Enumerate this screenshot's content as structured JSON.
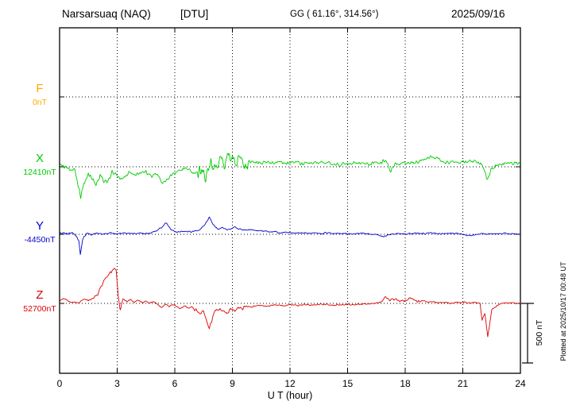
{
  "header": {
    "station": "Narsarsuaq (NAQ)",
    "institute": "[DTU]",
    "gg": "GG ( 61.16°, 314.56°)",
    "date": "2025/09/16"
  },
  "axis": {
    "xlabel": "U T (hour)"
  },
  "sidebar": {
    "plotted": "Plotted at 2025/10/17 00:48 UT",
    "scale_label": "500 nT"
  },
  "chart_data": {
    "type": "line",
    "title": "Narsarsuaq (NAQ) [DTU] magnetogram",
    "date": "2025/09/16",
    "xlabel": "U T (hour)",
    "x_range": [
      0,
      24
    ],
    "x_ticks": [
      0,
      3,
      6,
      9,
      12,
      15,
      18,
      21,
      24
    ],
    "grid": "dotted vertical lines every 3 h; dotted horizontal line at each component baseline",
    "scale_bar_nT": 500,
    "series": [
      {
        "name": "F",
        "color": "#FFAA00",
        "baseline_label": "0nT",
        "baseline_nT": 0,
        "visible": false,
        "noise_nT": 0,
        "anchors_hour_nT": [
          [
            0,
            0
          ],
          [
            24,
            0
          ]
        ]
      },
      {
        "name": "X",
        "color": "#00CC00",
        "baseline_label": "12410nT",
        "baseline_nT": 12410,
        "visible": true,
        "noise_nT": 26,
        "noise_regions": [
          {
            "from": 0.7,
            "to": 2.9,
            "amp": 30
          },
          {
            "from": 7.2,
            "to": 9.8,
            "amp": 90
          }
        ],
        "anchors_hour_nT": [
          [
            0,
            10
          ],
          [
            0.4,
            -10
          ],
          [
            0.8,
            -40
          ],
          [
            0.95,
            -150
          ],
          [
            1.1,
            -280
          ],
          [
            1.25,
            -150
          ],
          [
            1.45,
            -60
          ],
          [
            1.7,
            -100
          ],
          [
            1.9,
            -160
          ],
          [
            2.1,
            -90
          ],
          [
            2.35,
            -130
          ],
          [
            2.6,
            -110
          ],
          [
            2.8,
            -60
          ],
          [
            3,
            -80
          ],
          [
            3.3,
            -100
          ],
          [
            3.6,
            -50
          ],
          [
            3.9,
            -70
          ],
          [
            4.2,
            -55
          ],
          [
            4.5,
            -45
          ],
          [
            4.8,
            -70
          ],
          [
            5.1,
            -60
          ],
          [
            5.35,
            -140
          ],
          [
            5.6,
            -110
          ],
          [
            5.85,
            -60
          ],
          [
            6.1,
            -35
          ],
          [
            6.35,
            -15
          ],
          [
            6.6,
            -10
          ],
          [
            6.85,
            -45
          ],
          [
            7.1,
            -60
          ],
          [
            7.35,
            -25
          ],
          [
            7.6,
            -80
          ],
          [
            7.8,
            -20
          ],
          [
            8,
            40
          ],
          [
            8.2,
            -10
          ],
          [
            8.4,
            60
          ],
          [
            8.6,
            10
          ],
          [
            8.8,
            50
          ],
          [
            9,
            90
          ],
          [
            9.2,
            30
          ],
          [
            9.45,
            70
          ],
          [
            9.7,
            40
          ],
          [
            10,
            45
          ],
          [
            10.3,
            30
          ],
          [
            10.6,
            40
          ],
          [
            11,
            30
          ],
          [
            11.4,
            45
          ],
          [
            11.8,
            30
          ],
          [
            12.2,
            40
          ],
          [
            12.6,
            28
          ],
          [
            13,
            38
          ],
          [
            13.4,
            30
          ],
          [
            13.8,
            35
          ],
          [
            14.2,
            22
          ],
          [
            14.6,
            18
          ],
          [
            15,
            30
          ],
          [
            15.4,
            35
          ],
          [
            15.8,
            25
          ],
          [
            16.2,
            30
          ],
          [
            16.6,
            35
          ],
          [
            17,
            60
          ],
          [
            17.25,
            -40
          ],
          [
            17.5,
            20
          ],
          [
            17.8,
            30
          ],
          [
            18.2,
            28
          ],
          [
            18.6,
            40
          ],
          [
            19,
            65
          ],
          [
            19.4,
            85
          ],
          [
            19.7,
            70
          ],
          [
            20,
            45
          ],
          [
            20.4,
            35
          ],
          [
            20.8,
            40
          ],
          [
            21.2,
            50
          ],
          [
            21.6,
            45
          ],
          [
            22,
            25
          ],
          [
            22.25,
            -110
          ],
          [
            22.5,
            -20
          ],
          [
            22.8,
            15
          ],
          [
            23.2,
            28
          ],
          [
            23.6,
            30
          ],
          [
            24,
            35
          ]
        ]
      },
      {
        "name": "Y",
        "color": "#0000CC",
        "baseline_label": "-4450nT",
        "baseline_nT": -4450,
        "visible": true,
        "noise_nT": 10,
        "noise_regions": [
          {
            "from": 0,
            "to": 2,
            "amp": 6
          }
        ],
        "anchors_hour_nT": [
          [
            0,
            15
          ],
          [
            0.3,
            5
          ],
          [
            0.6,
            10
          ],
          [
            0.85,
            -10
          ],
          [
            1,
            -60
          ],
          [
            1.08,
            -170
          ],
          [
            1.2,
            -40
          ],
          [
            1.4,
            5
          ],
          [
            1.7,
            0
          ],
          [
            2,
            10
          ],
          [
            2.3,
            0
          ],
          [
            2.6,
            12
          ],
          [
            3,
            5
          ],
          [
            3.4,
            12
          ],
          [
            3.8,
            2
          ],
          [
            4.2,
            10
          ],
          [
            4.6,
            5
          ],
          [
            5,
            25
          ],
          [
            5.3,
            60
          ],
          [
            5.55,
            100
          ],
          [
            5.8,
            40
          ],
          [
            6.1,
            15
          ],
          [
            6.4,
            25
          ],
          [
            6.7,
            20
          ],
          [
            7,
            25
          ],
          [
            7.3,
            40
          ],
          [
            7.6,
            90
          ],
          [
            7.8,
            150
          ],
          [
            8,
            80
          ],
          [
            8.25,
            45
          ],
          [
            8.5,
            55
          ],
          [
            8.8,
            40
          ],
          [
            9.1,
            60
          ],
          [
            9.4,
            45
          ],
          [
            9.7,
            35
          ],
          [
            10,
            40
          ],
          [
            10.4,
            30
          ],
          [
            10.8,
            25
          ],
          [
            11.2,
            20
          ],
          [
            11.6,
            15
          ],
          [
            12,
            15
          ],
          [
            12.5,
            10
          ],
          [
            13,
            10
          ],
          [
            13.5,
            8
          ],
          [
            14,
            10
          ],
          [
            14.5,
            5
          ],
          [
            15,
            5
          ],
          [
            15.5,
            8
          ],
          [
            16,
            5
          ],
          [
            16.5,
            -5
          ],
          [
            16.9,
            -20
          ],
          [
            17.2,
            0
          ],
          [
            17.6,
            5
          ],
          [
            18,
            0
          ],
          [
            18.5,
            8
          ],
          [
            19,
            5
          ],
          [
            19.5,
            10
          ],
          [
            20,
            5
          ],
          [
            20.5,
            8
          ],
          [
            21,
            0
          ],
          [
            21.4,
            -12
          ],
          [
            21.8,
            0
          ],
          [
            22.2,
            5
          ],
          [
            22.6,
            0
          ],
          [
            23,
            8
          ],
          [
            23.5,
            5
          ],
          [
            24,
            5
          ]
        ]
      },
      {
        "name": "Z",
        "color": "#DD0000",
        "baseline_label": "52700nT",
        "baseline_nT": 52700,
        "visible": true,
        "noise_nT": 10,
        "noise_regions": [
          {
            "from": 1.8,
            "to": 3.2,
            "amp": 18
          },
          {
            "from": 7,
            "to": 9.8,
            "amp": 16
          },
          {
            "from": 16.8,
            "to": 18.8,
            "amp": 10
          }
        ],
        "anchors_hour_nT": [
          [
            0,
            25
          ],
          [
            0.25,
            45
          ],
          [
            0.5,
            15
          ],
          [
            0.75,
            10
          ],
          [
            1,
            5
          ],
          [
            1.25,
            35
          ],
          [
            1.5,
            25
          ],
          [
            1.75,
            45
          ],
          [
            2,
            80
          ],
          [
            2.2,
            160
          ],
          [
            2.4,
            220
          ],
          [
            2.6,
            265
          ],
          [
            2.8,
            295
          ],
          [
            2.95,
            300
          ],
          [
            3.05,
            60
          ],
          [
            3.15,
            -50
          ],
          [
            3.3,
            40
          ],
          [
            3.5,
            15
          ],
          [
            3.7,
            35
          ],
          [
            3.9,
            10
          ],
          [
            4.1,
            30
          ],
          [
            4.3,
            5
          ],
          [
            4.5,
            20
          ],
          [
            4.7,
            0
          ],
          [
            4.9,
            15
          ],
          [
            5.1,
            -10
          ],
          [
            5.3,
            -35
          ],
          [
            5.5,
            -5
          ],
          [
            5.7,
            -25
          ],
          [
            5.9,
            -10
          ],
          [
            6.1,
            -30
          ],
          [
            6.3,
            -45
          ],
          [
            6.5,
            -25
          ],
          [
            6.7,
            -40
          ],
          [
            6.9,
            -30
          ],
          [
            7.1,
            -60
          ],
          [
            7.3,
            -90
          ],
          [
            7.5,
            -70
          ],
          [
            7.65,
            -130
          ],
          [
            7.8,
            -220
          ],
          [
            7.95,
            -130
          ],
          [
            8.1,
            -70
          ],
          [
            8.3,
            -45
          ],
          [
            8.5,
            -60
          ],
          [
            8.7,
            -90
          ],
          [
            8.9,
            -40
          ],
          [
            9.1,
            -70
          ],
          [
            9.3,
            -30
          ],
          [
            9.5,
            -55
          ],
          [
            9.7,
            -25
          ],
          [
            10,
            -30
          ],
          [
            10.4,
            -15
          ],
          [
            10.8,
            -25
          ],
          [
            11.2,
            -12
          ],
          [
            11.6,
            -20
          ],
          [
            12,
            -12
          ],
          [
            12.4,
            -18
          ],
          [
            12.8,
            -10
          ],
          [
            13.2,
            -15
          ],
          [
            13.6,
            -8
          ],
          [
            14,
            -12
          ],
          [
            14.4,
            -15
          ],
          [
            14.8,
            -8
          ],
          [
            15.2,
            -12
          ],
          [
            15.6,
            -8
          ],
          [
            16,
            -5
          ],
          [
            16.4,
            0
          ],
          [
            16.7,
            10
          ],
          [
            17,
            55
          ],
          [
            17.2,
            20
          ],
          [
            17.45,
            35
          ],
          [
            17.7,
            15
          ],
          [
            18,
            25
          ],
          [
            18.3,
            45
          ],
          [
            18.6,
            15
          ],
          [
            18.9,
            25
          ],
          [
            19.2,
            10
          ],
          [
            19.5,
            15
          ],
          [
            19.8,
            5
          ],
          [
            20.1,
            10
          ],
          [
            20.4,
            0
          ],
          [
            20.7,
            8
          ],
          [
            21,
            12
          ],
          [
            21.3,
            5
          ],
          [
            21.6,
            8
          ],
          [
            21.9,
            0
          ],
          [
            22,
            -150
          ],
          [
            22.15,
            -80
          ],
          [
            22.3,
            -290
          ],
          [
            22.5,
            -60
          ],
          [
            22.8,
            -15
          ],
          [
            23.1,
            5
          ],
          [
            23.4,
            0
          ],
          [
            23.7,
            5
          ],
          [
            24,
            -5
          ]
        ]
      }
    ]
  }
}
